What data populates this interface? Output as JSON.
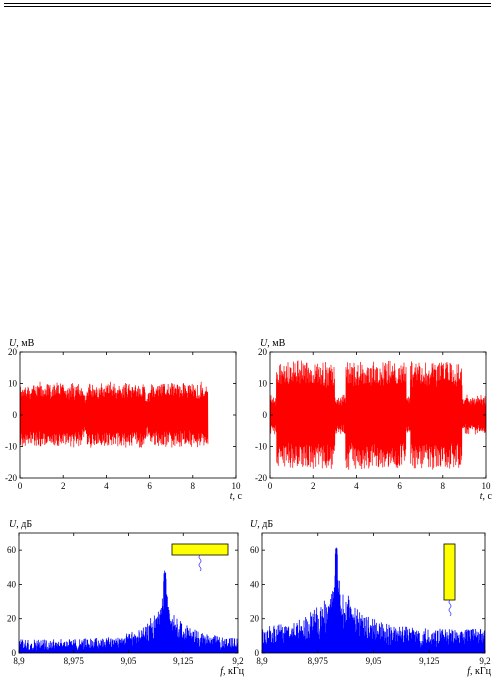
{
  "chart_data": [
    {
      "id": "time-left",
      "type": "line",
      "color": "#ff0000",
      "ylabel_var": "U",
      "ylabel_unit": ", мВ",
      "xlabel_var": "t",
      "xlabel_unit": ", с",
      "xlim": [
        0,
        10
      ],
      "ylim": [
        -20,
        20
      ],
      "xticks": [
        "0",
        "2",
        "4",
        "6",
        "8",
        "10"
      ],
      "yticks": [
        "20",
        "10",
        "0",
        "-10",
        "-20"
      ],
      "signal_end": 8.7,
      "bursts": [
        {
          "start": 0.0,
          "end": 2.9,
          "amplitude": 10
        },
        {
          "start": 3.1,
          "end": 5.8,
          "amplitude": 10
        },
        {
          "start": 6.0,
          "end": 8.7,
          "amplitude": 10
        }
      ],
      "gap_amplitude": 7
    },
    {
      "id": "time-right",
      "type": "line",
      "color": "#ff0000",
      "ylabel_var": "U",
      "ylabel_unit": ", мВ",
      "xlabel_var": "t",
      "xlabel_unit": ", с",
      "xlim": [
        0,
        10
      ],
      "ylim": [
        -20,
        20
      ],
      "xticks": [
        "0",
        "2",
        "4",
        "6",
        "8",
        "10"
      ],
      "yticks": [
        "20",
        "10",
        "0",
        "-10",
        "-20"
      ],
      "signal_end": 10,
      "bursts": [
        {
          "start": 0.3,
          "end": 3.0,
          "amplitude": 17
        },
        {
          "start": 3.5,
          "end": 6.3,
          "amplitude": 17
        },
        {
          "start": 6.5,
          "end": 8.9,
          "amplitude": 17
        }
      ],
      "gap_amplitude": 6
    },
    {
      "id": "spectrum-left",
      "type": "line",
      "color": "#0000ff",
      "ylabel_var": "U",
      "ylabel_unit": ", дБ",
      "xlabel_var": "f",
      "xlabel_unit": ", кГц",
      "xlim": [
        8.9,
        9.2
      ],
      "ylim": [
        0,
        70
      ],
      "xticks": [
        "8,9",
        "8,975",
        "9,05",
        "9,125",
        "9,2"
      ],
      "yticks": [
        "60",
        "40",
        "20",
        "0"
      ],
      "peak_x": 9.1,
      "peak_y": 49,
      "noise_level": 4,
      "bar_orientation": "horizontal"
    },
    {
      "id": "spectrum-right",
      "type": "line",
      "color": "#0000ff",
      "ylabel_var": "U",
      "ylabel_unit": ", дБ",
      "xlabel_var": "f",
      "xlabel_unit": ", кГц",
      "xlim": [
        8.9,
        9.2
      ],
      "ylim": [
        0,
        70
      ],
      "xticks": [
        "8,9",
        "8,975",
        "9,05",
        "9,125",
        "9,2"
      ],
      "yticks": [
        "60",
        "40",
        "20",
        "0"
      ],
      "peak_x": 9.0,
      "peak_y": 64,
      "noise_level": 7,
      "bar_orientation": "vertical"
    }
  ]
}
